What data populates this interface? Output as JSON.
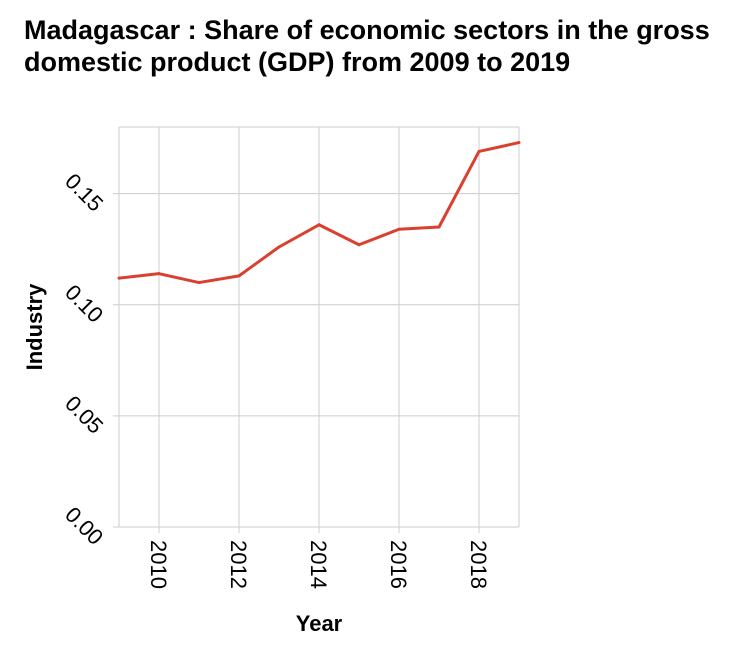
{
  "chart_data": {
    "type": "line",
    "title": "Madagascar : Share of economic sectors in the gross domestic product (GDP) from 2009 to 2019",
    "xlabel": "Year",
    "ylabel": "Industry",
    "x": [
      2009,
      2010,
      2011,
      2012,
      2013,
      2014,
      2015,
      2016,
      2017,
      2018,
      2019
    ],
    "series": [
      {
        "values": [
          0.112,
          0.114,
          0.11,
          0.113,
          0.126,
          0.136,
          0.127,
          0.134,
          0.135,
          0.169,
          0.173
        ]
      }
    ],
    "xlim": [
      2009,
      2019
    ],
    "ylim": [
      0,
      0.18
    ],
    "xticks": [
      "2010",
      "2012",
      "2014",
      "2016",
      "2018"
    ],
    "yticks": [
      "0.00",
      "0.05",
      "0.10",
      "0.15"
    ],
    "grid": true,
    "line_color": "#d9402f",
    "grid_color": "#cccccc"
  }
}
